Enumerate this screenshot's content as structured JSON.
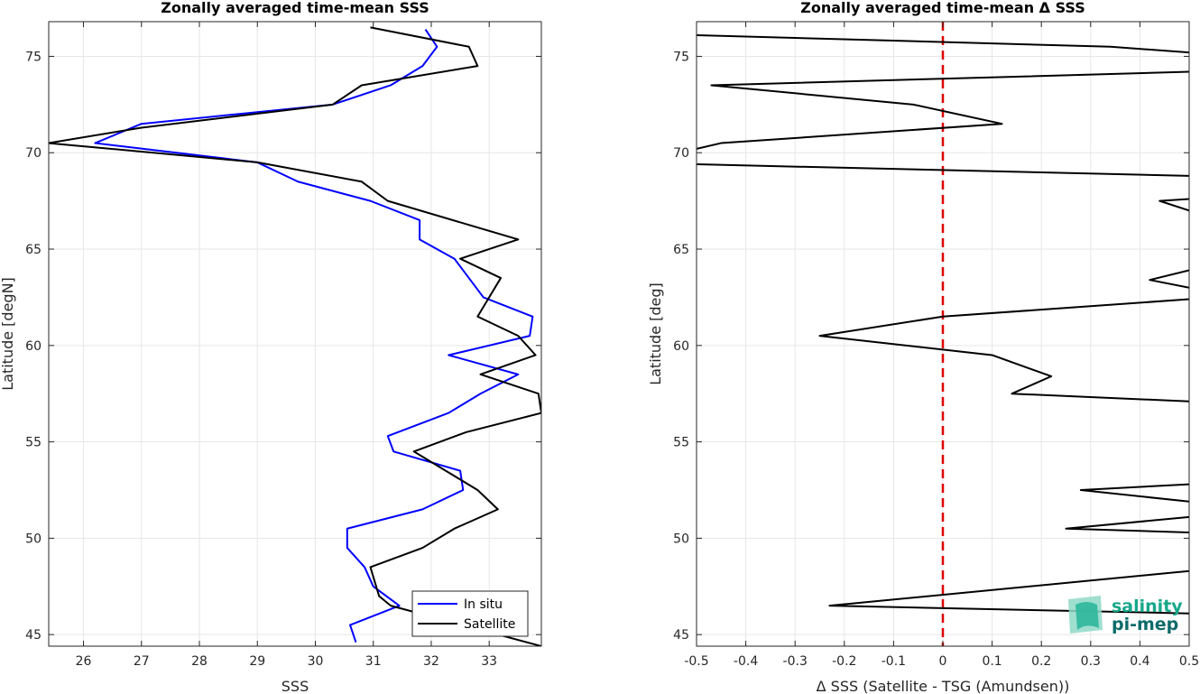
{
  "chart_data": [
    {
      "type": "line",
      "title": "Zonally averaged time-mean SSS",
      "xlabel": "SSS",
      "ylabel": "Latitude [degN]",
      "xlim": [
        25.4,
        33.9
      ],
      "ylim": [
        44.4,
        76.8
      ],
      "xticks": [
        26,
        27,
        28,
        29,
        30,
        31,
        32,
        33
      ],
      "yticks": [
        45,
        50,
        55,
        60,
        65,
        70,
        75
      ],
      "grid": true,
      "legend_position": "bottom-right",
      "series": [
        {
          "name": "In situ",
          "color": "#0000ff",
          "x": [
            30.7,
            30.6,
            31.45,
            31.0,
            30.85,
            30.55,
            30.55,
            31.85,
            32.55,
            32.5,
            31.35,
            31.25,
            32.3,
            32.85,
            33.5,
            32.3,
            33.7,
            33.75,
            33.75,
            32.9,
            32.9,
            32.4,
            31.8,
            31.8,
            30.95,
            29.7,
            29.0,
            26.2,
            27.0,
            30.3,
            31.3,
            31.85,
            32.1,
            31.9
          ],
          "y": [
            44.6,
            45.5,
            46.5,
            47.5,
            48.5,
            49.5,
            50.5,
            51.5,
            52.5,
            53.5,
            54.5,
            55.3,
            56.5,
            57.5,
            58.5,
            59.5,
            60.5,
            61.5,
            61.5,
            62.5,
            62.5,
            64.5,
            65.5,
            66.5,
            67.5,
            68.5,
            69.5,
            70.5,
            71.5,
            72.5,
            73.5,
            74.5,
            75.5,
            76.4
          ]
        },
        {
          "name": "Satellite",
          "color": "#000000",
          "x": [
            33.9,
            31.3,
            31.1,
            30.95,
            31.85,
            32.4,
            33.15,
            32.8,
            31.7,
            32.6,
            33.9,
            33.85,
            32.85,
            33.8,
            33.5,
            32.8,
            33.0,
            33.2,
            32.5,
            33.5,
            31.25,
            30.8,
            29.0,
            25.4,
            27.0,
            30.3,
            30.8,
            32.8,
            32.65,
            30.95
          ],
          "y": [
            44.4,
            46.5,
            47.0,
            48.5,
            49.5,
            50.5,
            51.5,
            52.5,
            54.5,
            55.5,
            56.5,
            57.5,
            58.5,
            59.5,
            60.5,
            61.5,
            62.5,
            63.5,
            64.5,
            65.5,
            67.5,
            68.5,
            69.5,
            70.5,
            71.3,
            72.5,
            73.5,
            74.5,
            75.5,
            76.5
          ]
        }
      ]
    },
    {
      "type": "line",
      "title": "Zonally averaged time-mean Δ SSS",
      "xlabel": "Δ SSS (Satellite - TSG (Amundsen))",
      "ylabel": "Latitude [deg]",
      "xlim": [
        -0.5,
        0.5
      ],
      "ylim": [
        44.4,
        76.8
      ],
      "xticks": [
        -0.5,
        -0.4,
        -0.3,
        -0.2,
        -0.1,
        0,
        0.1,
        0.2,
        0.3,
        0.4,
        0.5
      ],
      "xticklabels": [
        "-0.5",
        "-0.4",
        "-0.3",
        "-0.2",
        "-0.1",
        "0",
        "0.1",
        "0.2",
        "0.3",
        "0.4",
        "0.5"
      ],
      "yticks": [
        45,
        50,
        55,
        60,
        65,
        70,
        75
      ],
      "grid": true,
      "reference_line": {
        "x": 0,
        "color": "#dd0000",
        "style": "dashed"
      },
      "series": [
        {
          "color": "#000000",
          "segments": [
            {
              "x": [
                0.5,
                -0.23,
                0.5
              ],
              "y": [
                46.1,
                46.5,
                48.3
              ]
            },
            {
              "x": [
                0.5,
                0.25,
                0.5
              ],
              "y": [
                50.3,
                50.5,
                51.1
              ]
            },
            {
              "x": [
                0.5,
                0.28,
                0.5
              ],
              "y": [
                51.9,
                52.5,
                52.8
              ]
            },
            {
              "x": [
                0.5,
                0.14,
                0.22,
                0.1,
                -0.25,
                0.0,
                0.5
              ],
              "y": [
                57.1,
                57.5,
                58.4,
                59.5,
                60.5,
                61.5,
                62.4
              ]
            },
            {
              "x": [
                0.5,
                0.42,
                0.5
              ],
              "y": [
                63.0,
                63.4,
                63.9
              ]
            },
            {
              "x": [
                0.5,
                0.44,
                0.5
              ],
              "y": [
                67.0,
                67.5,
                67.6
              ]
            },
            {
              "x": [
                0.5,
                -0.5
              ],
              "y": [
                68.8,
                69.4
              ]
            },
            {
              "x": [
                -0.5,
                -0.45,
                0.12,
                -0.06,
                -0.47,
                0.5
              ],
              "y": [
                70.2,
                70.5,
                71.5,
                72.5,
                73.5,
                74.2
              ]
            },
            {
              "x": [
                0.5,
                0.34,
                -0.5
              ],
              "y": [
                75.2,
                75.5,
                76.1
              ]
            }
          ]
        }
      ]
    }
  ],
  "logo": {
    "line1": "salinity",
    "line2": "pi-mep"
  },
  "colors": {
    "axis": "#262626",
    "grid": "#e6e6e6",
    "logo_accent": "#17a88a",
    "logo_dark": "#0d6b6a"
  }
}
